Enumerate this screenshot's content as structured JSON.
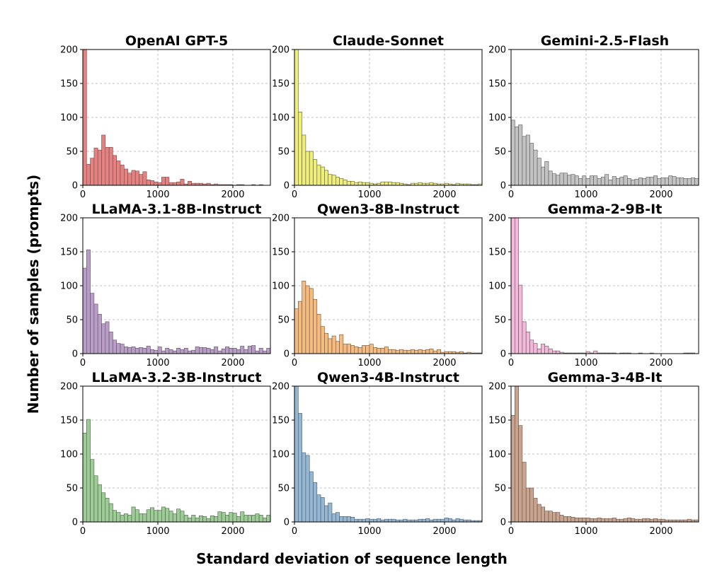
{
  "figure": {
    "xlabel": "Standard deviation of sequence length",
    "ylabel": "Number of samples (prompts)"
  },
  "chart_data": [
    {
      "type": "bar",
      "title": "OpenAI GPT-5",
      "color": "#e8807f",
      "bin_width": 50,
      "xlim": [
        0,
        2500
      ],
      "ylim": [
        0,
        200
      ],
      "xticks": [
        0,
        1000,
        2000
      ],
      "yticks": [
        0,
        50,
        100,
        150,
        200
      ],
      "grid": true,
      "values": [
        200,
        31,
        40,
        55,
        52,
        74,
        56,
        56,
        44,
        36,
        30,
        24,
        18,
        22,
        21,
        16,
        20,
        8,
        7,
        5,
        4,
        12,
        12,
        4,
        4,
        5,
        9,
        2,
        6,
        3,
        3,
        3,
        2,
        3,
        1,
        2,
        1,
        1,
        1,
        1,
        0,
        1,
        1,
        0,
        0,
        1,
        0,
        1,
        0,
        0
      ]
    },
    {
      "type": "bar",
      "title": "Claude-Sonnet",
      "color": "#eeee78",
      "bin_width": 50,
      "xlim": [
        0,
        2500
      ],
      "ylim": [
        0,
        200
      ],
      "xticks": [
        0,
        1000,
        2000
      ],
      "yticks": [
        0,
        50,
        100,
        150,
        200
      ],
      "grid": true,
      "values": [
        200,
        108,
        74,
        50,
        50,
        38,
        30,
        27,
        22,
        16,
        15,
        12,
        10,
        8,
        6,
        6,
        4,
        5,
        4,
        4,
        3,
        2,
        3,
        5,
        5,
        5,
        4,
        4,
        3,
        2,
        1,
        3,
        3,
        4,
        3,
        3,
        4,
        3,
        2,
        2,
        3,
        2,
        1,
        3,
        2,
        2,
        2,
        1,
        1,
        2
      ]
    },
    {
      "type": "bar",
      "title": "Gemini-2.5-Flash",
      "color": "#c3c3c3",
      "bin_width": 50,
      "xlim": [
        0,
        2500
      ],
      "ylim": [
        0,
        200
      ],
      "xticks": [
        0,
        1000,
        2000
      ],
      "yticks": [
        0,
        50,
        100,
        150,
        200
      ],
      "grid": true,
      "values": [
        96,
        86,
        89,
        72,
        74,
        62,
        52,
        40,
        27,
        35,
        21,
        17,
        15,
        18,
        18,
        15,
        16,
        14,
        10,
        14,
        10,
        14,
        14,
        10,
        12,
        16,
        8,
        13,
        10,
        12,
        14,
        10,
        8,
        9,
        11,
        10,
        12,
        12,
        14,
        10,
        11,
        11,
        14,
        13,
        11,
        11,
        10,
        10,
        11,
        10
      ]
    },
    {
      "type": "bar",
      "title": "LLaMA-3.1-8B-Instruct",
      "color": "#b99cc7",
      "bin_width": 50,
      "xlim": [
        0,
        2500
      ],
      "ylim": [
        0,
        200
      ],
      "xticks": [
        0,
        1000,
        2000
      ],
      "yticks": [
        0,
        50,
        100,
        150,
        200
      ],
      "grid": true,
      "values": [
        126,
        153,
        89,
        73,
        58,
        44,
        47,
        32,
        20,
        15,
        14,
        10,
        9,
        10,
        8,
        9,
        8,
        11,
        6,
        5,
        10,
        4,
        8,
        6,
        4,
        8,
        6,
        8,
        4,
        5,
        10,
        9,
        9,
        8,
        6,
        10,
        4,
        7,
        10,
        8,
        8,
        6,
        11,
        6,
        11,
        12,
        4,
        8,
        4,
        8
      ]
    },
    {
      "type": "bar",
      "title": "Qwen3-8B-Instruct",
      "color": "#f7bb7e",
      "bin_width": 50,
      "xlim": [
        0,
        2500
      ],
      "ylim": [
        0,
        200
      ],
      "xticks": [
        0,
        1000,
        2000
      ],
      "yticks": [
        0,
        50,
        100,
        150,
        200
      ],
      "grid": true,
      "values": [
        66,
        77,
        107,
        100,
        96,
        80,
        58,
        40,
        30,
        22,
        26,
        18,
        28,
        14,
        14,
        12,
        10,
        9,
        12,
        12,
        14,
        9,
        8,
        8,
        10,
        6,
        6,
        5,
        6,
        5,
        5,
        6,
        5,
        6,
        5,
        6,
        7,
        4,
        6,
        2,
        3,
        3,
        3,
        2,
        3,
        1,
        2,
        1,
        1,
        1
      ]
    },
    {
      "type": "bar",
      "title": "Gemma-2-9B-It",
      "color": "#f4b9da",
      "bin_width": 50,
      "xlim": [
        0,
        2500
      ],
      "ylim": [
        0,
        200
      ],
      "xticks": [
        0,
        1000,
        2000
      ],
      "yticks": [
        0,
        50,
        100,
        150,
        200
      ],
      "grid": true,
      "values": [
        200,
        200,
        101,
        47,
        32,
        20,
        15,
        7,
        14,
        11,
        7,
        4,
        4,
        2,
        1,
        1,
        1,
        1,
        1,
        1,
        3,
        1,
        4,
        1,
        1,
        1,
        1,
        1,
        0,
        1,
        1,
        1,
        0,
        0,
        1,
        0,
        0,
        1,
        0,
        0,
        0,
        0,
        0,
        0,
        0,
        0,
        1,
        1,
        1,
        0
      ]
    },
    {
      "type": "bar",
      "title": "LLaMA-3.2-3B-Instruct",
      "color": "#9ccd94",
      "bin_width": 50,
      "xlim": [
        0,
        2500
      ],
      "ylim": [
        0,
        200
      ],
      "xticks": [
        0,
        1000,
        2000
      ],
      "yticks": [
        0,
        50,
        100,
        150,
        200
      ],
      "grid": true,
      "values": [
        131,
        151,
        92,
        68,
        55,
        43,
        35,
        27,
        17,
        14,
        10,
        12,
        10,
        22,
        18,
        12,
        12,
        18,
        21,
        17,
        17,
        22,
        20,
        16,
        12,
        19,
        16,
        10,
        6,
        10,
        6,
        9,
        8,
        5,
        9,
        8,
        15,
        14,
        10,
        14,
        13,
        8,
        15,
        10,
        10,
        10,
        12,
        10,
        6,
        10
      ]
    },
    {
      "type": "bar",
      "title": "Qwen3-4B-Instruct",
      "color": "#93b8d6",
      "bin_width": 50,
      "xlim": [
        0,
        2500
      ],
      "ylim": [
        0,
        200
      ],
      "xticks": [
        0,
        1000,
        2000
      ],
      "yticks": [
        0,
        50,
        100,
        150,
        200
      ],
      "grid": true,
      "values": [
        200,
        160,
        102,
        98,
        74,
        58,
        40,
        36,
        24,
        28,
        12,
        14,
        8,
        8,
        8,
        7,
        4,
        4,
        4,
        5,
        4,
        4,
        5,
        3,
        4,
        4,
        4,
        3,
        3,
        4,
        3,
        3,
        3,
        4,
        4,
        5,
        3,
        4,
        4,
        4,
        6,
        5,
        3,
        5,
        4,
        3,
        3,
        2,
        2,
        2
      ]
    },
    {
      "type": "bar",
      "title": "Gemma-3-4B-It",
      "color": "#c9a38c",
      "bin_width": 50,
      "xlim": [
        0,
        2500
      ],
      "ylim": [
        0,
        200
      ],
      "xticks": [
        0,
        1000,
        2000
      ],
      "yticks": [
        0,
        50,
        100,
        150,
        200
      ],
      "grid": true,
      "values": [
        157,
        200,
        142,
        88,
        50,
        50,
        35,
        26,
        22,
        16,
        16,
        14,
        14,
        10,
        8,
        8,
        7,
        6,
        6,
        6,
        6,
        5,
        5,
        6,
        5,
        5,
        5,
        6,
        4,
        4,
        5,
        6,
        5,
        4,
        4,
        5,
        5,
        4,
        5,
        4,
        4,
        3,
        3,
        3,
        3,
        3,
        3,
        4,
        3,
        3
      ]
    }
  ]
}
